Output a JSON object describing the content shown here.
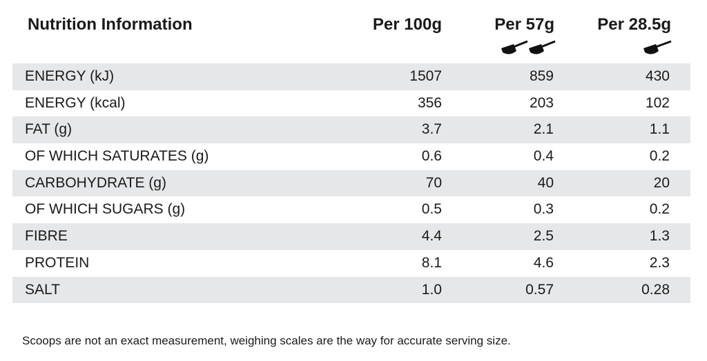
{
  "header": {
    "title": "Nutrition Information",
    "columns": [
      "Per 100g",
      "Per 57g",
      "Per 28.5g"
    ]
  },
  "table": {
    "rows": [
      [
        "ENERGY (kJ)",
        "1507",
        "859",
        "430"
      ],
      [
        "ENERGY (kcal)",
        "356",
        "203",
        "102"
      ],
      [
        "FAT (g)",
        "3.7",
        "2.1",
        "1.1"
      ],
      [
        "OF WHICH SATURATES (g)",
        "0.6",
        "0.4",
        "0.2"
      ],
      [
        "CARBOHYDRATE (g)",
        "70",
        "40",
        "20"
      ],
      [
        "OF WHICH SUGARS (g)",
        "0.5",
        "0.3",
        "0.2"
      ],
      [
        "FIBRE",
        "4.4",
        "2.5",
        "1.3"
      ],
      [
        "PROTEIN",
        "8.1",
        "4.6",
        "2.3"
      ],
      [
        "SALT",
        "1.0",
        "0.57",
        "0.28"
      ]
    ]
  },
  "footnote": "Scoops are not an exact measurement, weighing scales are the way for accurate serving size."
}
